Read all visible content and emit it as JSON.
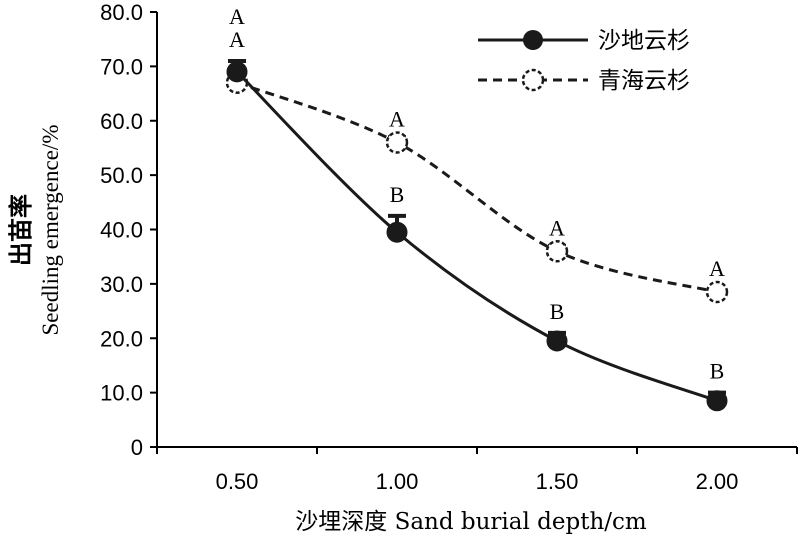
{
  "chart_data": {
    "type": "line",
    "xlabel": "沙埋深度 Sand burial depth/cm",
    "ylabel_zh": "出苗率",
    "ylabel_en": "Seedling emergence/%",
    "x": [
      "0.50",
      "1.00",
      "1.50",
      "2.00"
    ],
    "y_ticks": [
      "0",
      "10.0",
      "20.0",
      "30.0",
      "40.0",
      "50.0",
      "60.0",
      "70.0",
      "80.0"
    ],
    "ylim": [
      0,
      80
    ],
    "grid": false,
    "legend": "top-right",
    "series": [
      {
        "name": "沙地云杉",
        "style": "solid",
        "marker": "filled-circle",
        "color": "#1a1a1a",
        "values": [
          69.0,
          39.5,
          19.5,
          8.5
        ],
        "errors": [
          2.0,
          3.0,
          1.5,
          1.5
        ],
        "letters": [
          "A",
          "B",
          "B",
          "B"
        ]
      },
      {
        "name": "青海云杉",
        "style": "dashed",
        "marker": "open-circle",
        "color": "#1a1a1a",
        "values": [
          67.0,
          56.0,
          36.0,
          28.5
        ],
        "errors": [
          2.5,
          1.0,
          1.0,
          0.5
        ],
        "letters": [
          "A",
          "A",
          "A",
          "A"
        ]
      }
    ]
  }
}
